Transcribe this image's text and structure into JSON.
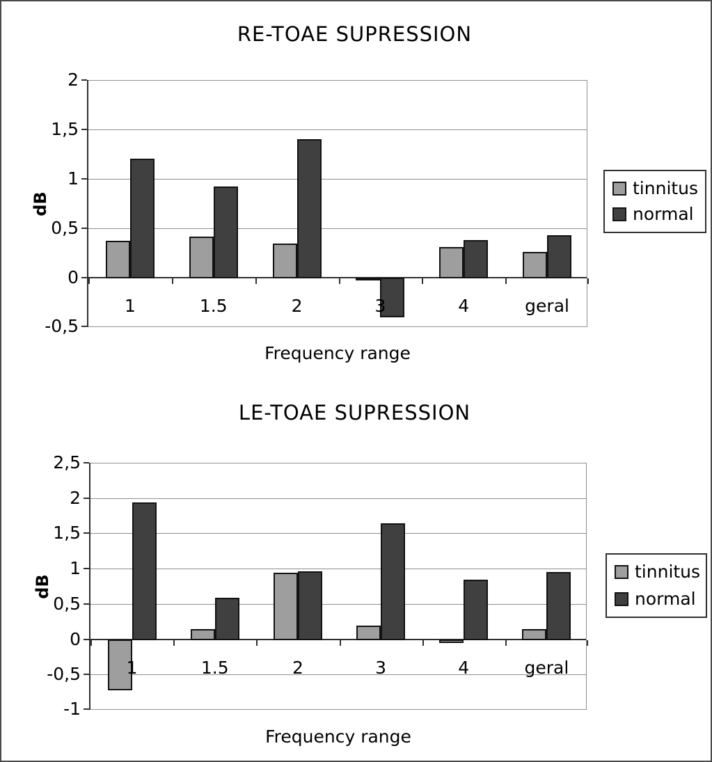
{
  "colors": {
    "tinnitus": "#9e9e9e",
    "normal": "#404040",
    "gridline": "#8e8e8e",
    "axis": "#2f2f2f",
    "bar_border": "#121212",
    "text": "#000000",
    "page_border": "#4a4a4a"
  },
  "chart_data": [
    {
      "type": "bar",
      "title": "RE-TOAE SUPRESSION",
      "xlabel": "Frequency range",
      "ylabel": "dB",
      "categories": [
        "1",
        "1.5",
        "2",
        "3",
        "4",
        "geral"
      ],
      "series": [
        {
          "name": "tinnitus",
          "color": "#9e9e9e",
          "values": [
            0.38,
            0.42,
            0.35,
            -0.02,
            0.32,
            0.27
          ]
        },
        {
          "name": "normal",
          "color": "#404040",
          "values": [
            1.21,
            0.93,
            1.41,
            -0.4,
            0.39,
            0.44
          ]
        }
      ],
      "ylim": [
        -0.5,
        2
      ],
      "ytick_step": 0.5,
      "ytick_labels_top_to_bottom": [
        "2",
        "1,5",
        "1",
        "0,5",
        "0",
        "-0,5"
      ],
      "grid": true,
      "legend_position": "right"
    },
    {
      "type": "bar",
      "title": "LE-TOAE SUPRESSION",
      "xlabel": "Frequency range",
      "ylabel": "dB",
      "categories": [
        "1",
        "1.5",
        "2",
        "3",
        "4",
        "geral"
      ],
      "series": [
        {
          "name": "tinnitus",
          "color": "#9e9e9e",
          "values": [
            -0.72,
            0.15,
            0.95,
            0.2,
            -0.05,
            0.15
          ]
        },
        {
          "name": "normal",
          "color": "#404040",
          "values": [
            1.95,
            0.6,
            0.97,
            1.65,
            0.85,
            0.96
          ]
        }
      ],
      "ylim": [
        -1,
        2.5
      ],
      "ytick_step": 0.5,
      "ytick_labels_top_to_bottom": [
        "2,5",
        "2",
        "1,5",
        "1",
        "0,5",
        "0",
        "-0,5",
        "-1"
      ],
      "grid": true,
      "legend_position": "right"
    }
  ]
}
